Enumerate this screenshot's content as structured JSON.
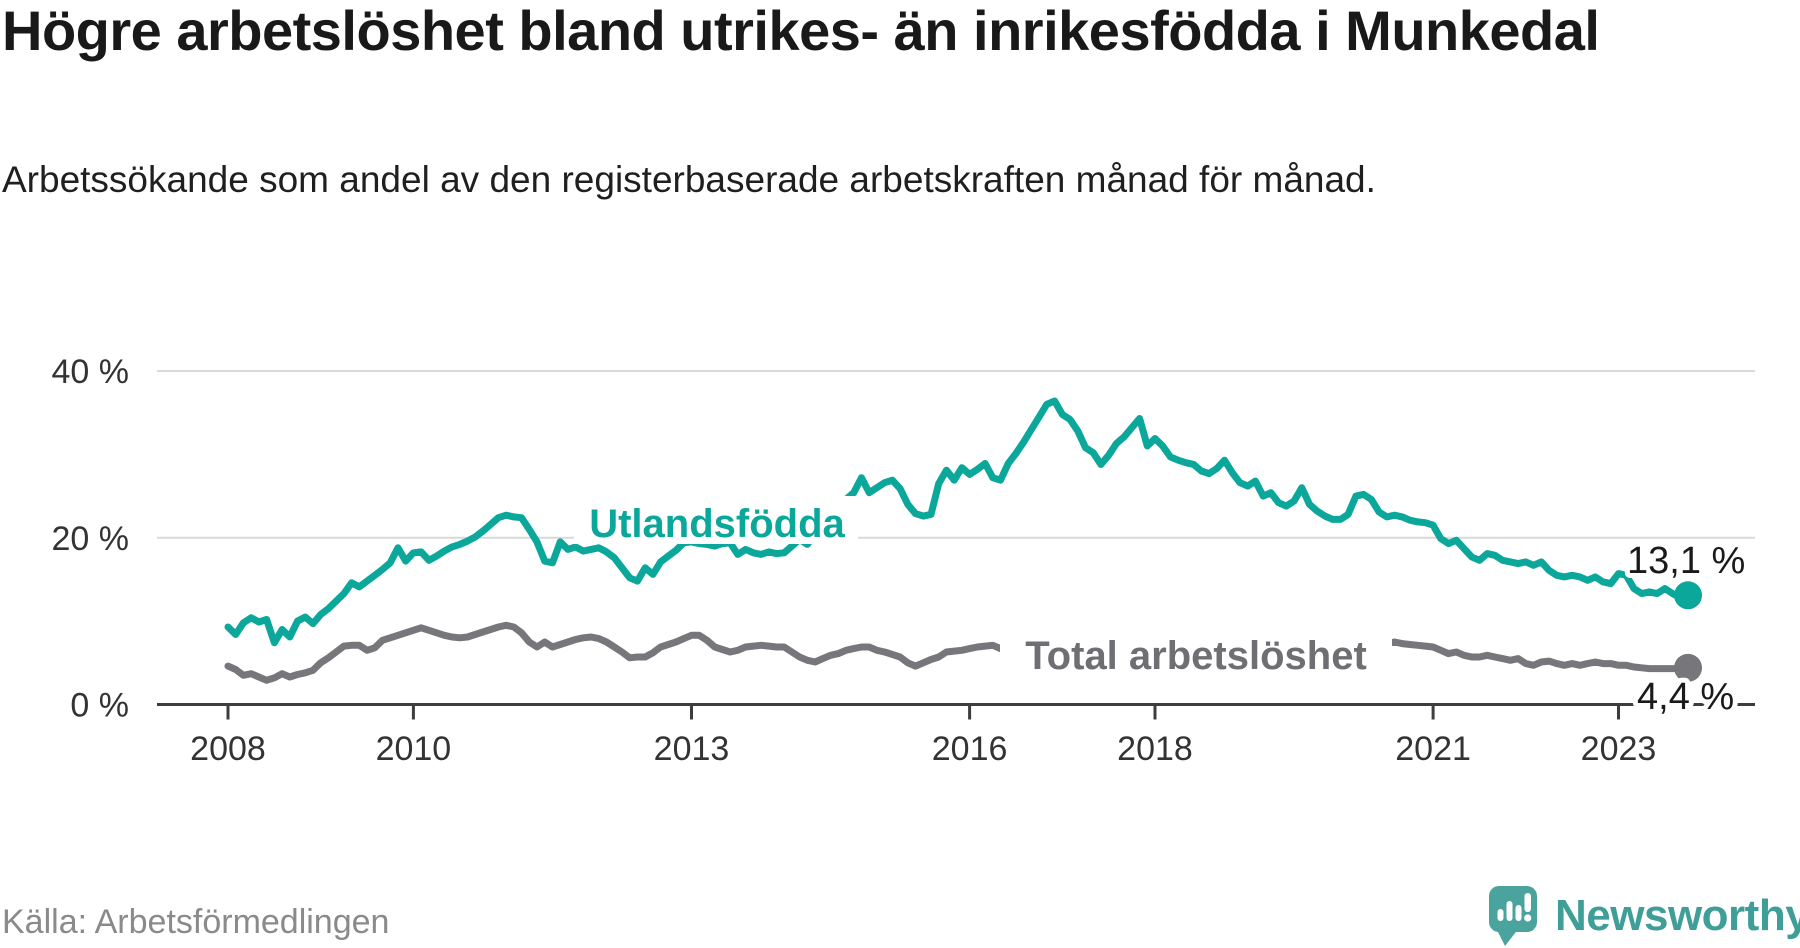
{
  "header": {
    "title": "Högre arbetslöshet bland utrikes- än inrikesfödda i Munkedal",
    "subtitle": "Arbetssökande som andel av den registerbaserade arbetskraften månad för månad."
  },
  "footer": {
    "source": "Källa: Arbetsförmedlingen",
    "logo_text": "Newsworthy",
    "logo_icon": "newsworthy-speech-bubble-bar-chart-icon"
  },
  "colors": {
    "foreign_born_line": "#0ba79b",
    "total_line": "#77777b",
    "total_label": "#6f6f73",
    "grid": "#d9d9d9",
    "axis": "#3d3d3d",
    "title": "#191919",
    "subtitle": "#1f1f1f",
    "tick_label": "#333333",
    "value_label": "#1a1a1a",
    "source": "#8a8a8a",
    "logo": "#3f9e98",
    "background": "#ffffff"
  },
  "chart_data": {
    "type": "line",
    "frequency": "monthly",
    "x_start": "2008-01",
    "x_end": "2023-10",
    "x_tick_years": [
      2008,
      2010,
      2013,
      2016,
      2018,
      2021,
      2023
    ],
    "y_ticks": [
      {
        "value": 0,
        "label": "0 %"
      },
      {
        "value": 20,
        "label": "20 %"
      },
      {
        "value": 40,
        "label": "40 %"
      }
    ],
    "ylim": [
      0,
      42
    ],
    "grid": "horizontal",
    "legend_position": "inline-labels",
    "series": [
      {
        "name": "Utlandsfödda",
        "color": "#0ba79b",
        "label_color": "#0ba79b",
        "end_label": "13,1 %",
        "end_value": 13.1,
        "values": [
          9.3,
          8.4,
          9.8,
          10.4,
          9.9,
          10.2,
          7.4,
          9.0,
          8.1,
          10.0,
          10.5,
          9.7,
          10.8,
          11.5,
          12.4,
          13.3,
          14.6,
          14.1,
          14.8,
          15.5,
          16.2,
          17.0,
          18.8,
          17.2,
          18.2,
          18.3,
          17.3,
          17.8,
          18.4,
          18.9,
          19.2,
          19.6,
          20.1,
          20.8,
          21.6,
          22.4,
          22.7,
          22.5,
          22.4,
          21.0,
          19.5,
          17.2,
          17.0,
          19.5,
          18.6,
          18.9,
          18.4,
          18.6,
          18.8,
          18.3,
          17.6,
          16.4,
          15.2,
          14.8,
          16.4,
          15.6,
          17.1,
          17.8,
          18.5,
          19.4,
          19.5,
          19.3,
          19.2,
          19.0,
          19.3,
          19.4,
          18.0,
          18.6,
          18.2,
          18.0,
          18.3,
          18.1,
          18.2,
          19.0,
          19.8,
          19.2,
          20.5,
          21.3,
          22.8,
          24.2,
          24.6,
          25.4,
          27.2,
          25.4,
          26.0,
          26.6,
          26.9,
          25.9,
          24.0,
          22.9,
          22.6,
          22.8,
          26.5,
          28.1,
          26.9,
          28.4,
          27.6,
          28.2,
          28.9,
          27.2,
          26.9,
          28.9,
          30.1,
          31.5,
          33.0,
          34.5,
          36.0,
          36.4,
          34.8,
          34.2,
          32.8,
          30.8,
          30.2,
          28.8,
          29.9,
          31.3,
          32.1,
          33.2,
          34.3,
          31.0,
          31.9,
          31.0,
          29.7,
          29.3,
          29.0,
          28.8,
          28.0,
          27.7,
          28.3,
          29.3,
          27.8,
          26.6,
          26.2,
          26.8,
          25.0,
          25.4,
          24.2,
          23.8,
          24.4,
          26.0,
          24.0,
          23.2,
          22.6,
          22.2,
          22.2,
          22.8,
          25.0,
          25.2,
          24.6,
          23.1,
          22.5,
          22.7,
          22.5,
          22.1,
          21.9,
          21.8,
          21.5,
          19.9,
          19.3,
          19.7,
          18.7,
          17.7,
          17.3,
          18.1,
          17.9,
          17.3,
          17.1,
          16.9,
          17.1,
          16.7,
          17.1,
          16.1,
          15.5,
          15.3,
          15.5,
          15.3,
          14.9,
          15.3,
          14.7,
          14.5,
          15.7,
          15.5,
          13.9,
          13.3,
          13.5,
          13.3,
          13.9,
          13.3,
          12.8,
          13.1
        ]
      },
      {
        "name": "Total arbetslöshet",
        "color": "#77777b",
        "label_color": "#6f6f73",
        "end_label": "4,4 %",
        "end_value": 4.4,
        "values": [
          4.6,
          4.2,
          3.5,
          3.7,
          3.3,
          2.9,
          3.2,
          3.7,
          3.3,
          3.6,
          3.8,
          4.1,
          5.0,
          5.6,
          6.3,
          7.0,
          7.1,
          7.1,
          6.5,
          6.8,
          7.7,
          8.0,
          8.3,
          8.6,
          8.9,
          9.2,
          8.9,
          8.6,
          8.3,
          8.1,
          8.0,
          8.1,
          8.4,
          8.7,
          9.0,
          9.3,
          9.5,
          9.3,
          8.6,
          7.5,
          6.9,
          7.5,
          6.9,
          7.2,
          7.5,
          7.8,
          8.0,
          8.1,
          7.9,
          7.5,
          6.9,
          6.3,
          5.6,
          5.7,
          5.7,
          6.2,
          6.9,
          7.2,
          7.5,
          7.9,
          8.3,
          8.3,
          7.7,
          6.9,
          6.6,
          6.3,
          6.5,
          6.9,
          7.0,
          7.1,
          7.0,
          6.9,
          6.9,
          6.3,
          5.7,
          5.3,
          5.1,
          5.5,
          5.9,
          6.1,
          6.5,
          6.7,
          6.9,
          6.9,
          6.5,
          6.3,
          6.0,
          5.7,
          5.0,
          4.6,
          5.0,
          5.4,
          5.7,
          6.3,
          6.4,
          6.5,
          6.7,
          6.9,
          7.0,
          7.1,
          6.7,
          6.5,
          6.7,
          6.5,
          6.4,
          6.3,
          6.3,
          6.4,
          6.2,
          6.0,
          5.9,
          5.7,
          5.6,
          5.5,
          5.6,
          5.7,
          5.8,
          5.9,
          6.0,
          6.1,
          6.2,
          6.3,
          6.2,
          6.1,
          6.0,
          5.9,
          5.8,
          5.9,
          6.0,
          6.1,
          6.2,
          6.3,
          6.2,
          6.1,
          6.0,
          5.9,
          5.8,
          5.7,
          5.8,
          5.9,
          6.0,
          6.1,
          6.2,
          6.4,
          6.6,
          6.8,
          7.3,
          7.7,
          7.6,
          7.4,
          7.3,
          7.5,
          7.3,
          7.2,
          7.1,
          7.0,
          6.9,
          6.5,
          6.1,
          6.3,
          5.9,
          5.7,
          5.7,
          5.9,
          5.7,
          5.5,
          5.3,
          5.5,
          4.9,
          4.7,
          5.1,
          5.2,
          4.9,
          4.7,
          4.9,
          4.7,
          4.9,
          5.1,
          4.9,
          4.9,
          4.7,
          4.7,
          4.5,
          4.4,
          4.3,
          4.3,
          4.3,
          4.3,
          4.3,
          4.4
        ]
      }
    ]
  }
}
